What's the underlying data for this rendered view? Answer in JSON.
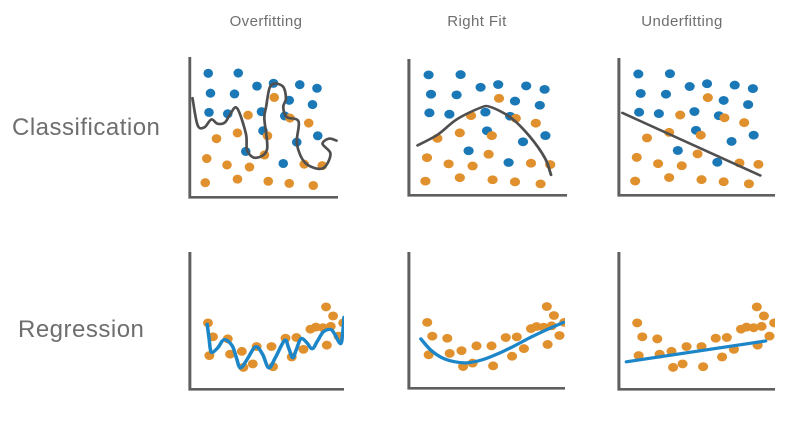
{
  "colors": {
    "background": "#ffffff",
    "blue_dot": "#1b78b6",
    "orange_dot": "#e0912e",
    "blue_line": "#1d86c8",
    "gray_line": "#4f4f4f",
    "axis": "#5f5f5f",
    "text": "#6e6e6e"
  },
  "chart_data": {
    "type": "scatter",
    "layout": "2x3-small-multiples",
    "columns": [
      "Overfitting",
      "Right Fit",
      "Underfitting"
    ],
    "rows": [
      "Classification",
      "Regression"
    ],
    "axes": {
      "style": "L-shaped, no ticks, no labels",
      "range": [
        0,
        100
      ],
      "grid": false,
      "legend": "none"
    },
    "scatters": {
      "classification": {
        "blue_points": [
          [
            13.5,
            11.5
          ],
          [
            33.5,
            11.3
          ],
          [
            46,
            20.5
          ],
          [
            57,
            18.5
          ],
          [
            74.5,
            19.5
          ],
          [
            86,
            22
          ],
          [
            15,
            25.5
          ],
          [
            31,
            26
          ],
          [
            67.5,
            30.5
          ],
          [
            83,
            33.5
          ],
          [
            14,
            39
          ],
          [
            26.5,
            40
          ],
          [
            49,
            38.5
          ],
          [
            64.5,
            41.5
          ],
          [
            50,
            52
          ],
          [
            72.5,
            60
          ],
          [
            86.5,
            55.5
          ],
          [
            38.5,
            66.5
          ],
          [
            63.5,
            75
          ]
        ],
        "orange_points": [
          [
            57.5,
            28.5
          ],
          [
            40,
            41
          ],
          [
            68,
            43
          ],
          [
            80.5,
            46.5
          ],
          [
            19,
            57.5
          ],
          [
            33,
            53.5
          ],
          [
            53,
            55.5
          ],
          [
            51,
            69
          ],
          [
            12.5,
            71.5
          ],
          [
            26,
            76
          ],
          [
            41,
            77.5
          ],
          [
            77.5,
            75.5
          ],
          [
            89.5,
            76.5
          ],
          [
            11.5,
            88.5
          ],
          [
            33,
            86
          ],
          [
            53.5,
            87.5
          ],
          [
            67.5,
            89
          ],
          [
            83.5,
            90.5
          ]
        ]
      },
      "regression": {
        "orange_points": [
          [
            12.8,
            51
          ],
          [
            16,
            61
          ],
          [
            13.7,
            74.5
          ],
          [
            25.5,
            62.5
          ],
          [
            27,
            73.5
          ],
          [
            34.5,
            71.5
          ],
          [
            35.5,
            83
          ],
          [
            41.5,
            80.5
          ],
          [
            44,
            68
          ],
          [
            53.5,
            68
          ],
          [
            54.5,
            82.5
          ],
          [
            62.5,
            62
          ],
          [
            66.5,
            75.5
          ],
          [
            69.5,
            61.5
          ],
          [
            74,
            70
          ],
          [
            78.5,
            55.5
          ],
          [
            82,
            54
          ],
          [
            86.5,
            54.5
          ],
          [
            91.5,
            53.5
          ],
          [
            88.5,
            39.5
          ],
          [
            93,
            46
          ],
          [
            89,
            67
          ],
          [
            96.5,
            60.5
          ],
          [
            99.5,
            51
          ]
        ]
      }
    },
    "panels": [
      {
        "id": "classification-overfitting",
        "row": "Classification",
        "column": "Overfitting",
        "scatter": "classification",
        "curve": {
          "name": "wiggly-decision-boundary",
          "color_key": "gray_line",
          "smooth": true,
          "points": [
            [
              3,
              29
            ],
            [
              6.4,
              48
            ],
            [
              11,
              49.5
            ],
            [
              15.5,
              44
            ],
            [
              19.7,
              47
            ],
            [
              24.7,
              46
            ],
            [
              28,
              40.5
            ],
            [
              32.7,
              36
            ],
            [
              38.6,
              54
            ],
            [
              39.5,
              66
            ],
            [
              45.2,
              71
            ],
            [
              52.7,
              65
            ],
            [
              50.9,
              43.5
            ],
            [
              52.1,
              35
            ],
            [
              54.3,
              22
            ],
            [
              57.7,
              18.7
            ],
            [
              63.5,
              21
            ],
            [
              65.3,
              29.3
            ],
            [
              63.5,
              35.2
            ],
            [
              65.8,
              42.3
            ],
            [
              73.7,
              45.4
            ],
            [
              72.6,
              61.2
            ],
            [
              78.3,
              74.7
            ],
            [
              89.7,
              78.5
            ],
            [
              95,
              68.3
            ],
            [
              89.7,
              61.2
            ],
            [
              94,
              57.5
            ],
            [
              99,
              58.9
            ]
          ]
        }
      },
      {
        "id": "classification-rightfit",
        "row": "Classification",
        "column": "Right Fit",
        "scatter": "classification",
        "curve": {
          "name": "smooth-arc-decision-boundary",
          "color_key": "gray_line",
          "smooth": true,
          "points": [
            [
              6.6,
              62.6
            ],
            [
              19.3,
              54.7
            ],
            [
              31,
              43.8
            ],
            [
              45.9,
              35.3
            ],
            [
              52.2,
              34.8
            ],
            [
              65,
              42.6
            ],
            [
              76.6,
              56
            ],
            [
              86.2,
              71.8
            ],
            [
              90,
              84
            ]
          ]
        }
      },
      {
        "id": "classification-underfitting",
        "row": "Classification",
        "column": "Underfitting",
        "scatter": "classification",
        "curve": {
          "name": "straight-decision-boundary",
          "color_key": "gray_line",
          "smooth": false,
          "points": [
            [
              3.4,
              39.5
            ],
            [
              90.7,
              84.5
            ]
          ]
        }
      },
      {
        "id": "regression-overfitting",
        "row": "Regression",
        "column": "Overfitting",
        "scatter": "regression",
        "curve": {
          "name": "wiggly-regression-fit",
          "color_key": "blue_line",
          "smooth": true,
          "points": [
            [
              12.3,
              52
            ],
            [
              13.5,
              62
            ],
            [
              14.9,
              72
            ],
            [
              19,
              69
            ],
            [
              23.2,
              63
            ],
            [
              28.3,
              67.4
            ],
            [
              31,
              76
            ],
            [
              33.6,
              83.4
            ],
            [
              38,
              77
            ],
            [
              42,
              69.5
            ],
            [
              44.5,
              68.4
            ],
            [
              48,
              74
            ],
            [
              51.8,
              83.4
            ],
            [
              56,
              76
            ],
            [
              62,
              63.5
            ],
            [
              64.5,
              69
            ],
            [
              67.1,
              76.1
            ],
            [
              69.5,
              70
            ],
            [
              72.4,
              62.3
            ],
            [
              76,
              65
            ],
            [
              79.6,
              69.6
            ],
            [
              83,
              64
            ],
            [
              86.8,
              57.4
            ],
            [
              91.4,
              55.7
            ],
            [
              94,
              59
            ],
            [
              97.8,
              66
            ],
            [
              99.2,
              58
            ],
            [
              100,
              47
            ]
          ]
        }
      },
      {
        "id": "regression-rightfit",
        "row": "Regression",
        "column": "Right Fit",
        "scatter": "regression",
        "curve": {
          "name": "smooth-u-regression-fit",
          "color_key": "blue_line",
          "smooth": true,
          "points": [
            [
              8.8,
              63
            ],
            [
              15,
              71
            ],
            [
              22,
              76.5
            ],
            [
              30,
              79.5
            ],
            [
              38,
              80.3
            ],
            [
              48,
              78
            ],
            [
              58,
              73.5
            ],
            [
              68,
              68
            ],
            [
              78,
              62
            ],
            [
              88,
              56.5
            ],
            [
              99,
              51
            ]
          ]
        }
      },
      {
        "id": "regression-underfitting",
        "row": "Regression",
        "column": "Underfitting",
        "scatter": "regression",
        "curve": {
          "name": "straight-regression-fit",
          "color_key": "blue_line",
          "smooth": false,
          "points": [
            [
              6,
              79
            ],
            [
              94,
              64
            ]
          ]
        }
      }
    ]
  }
}
